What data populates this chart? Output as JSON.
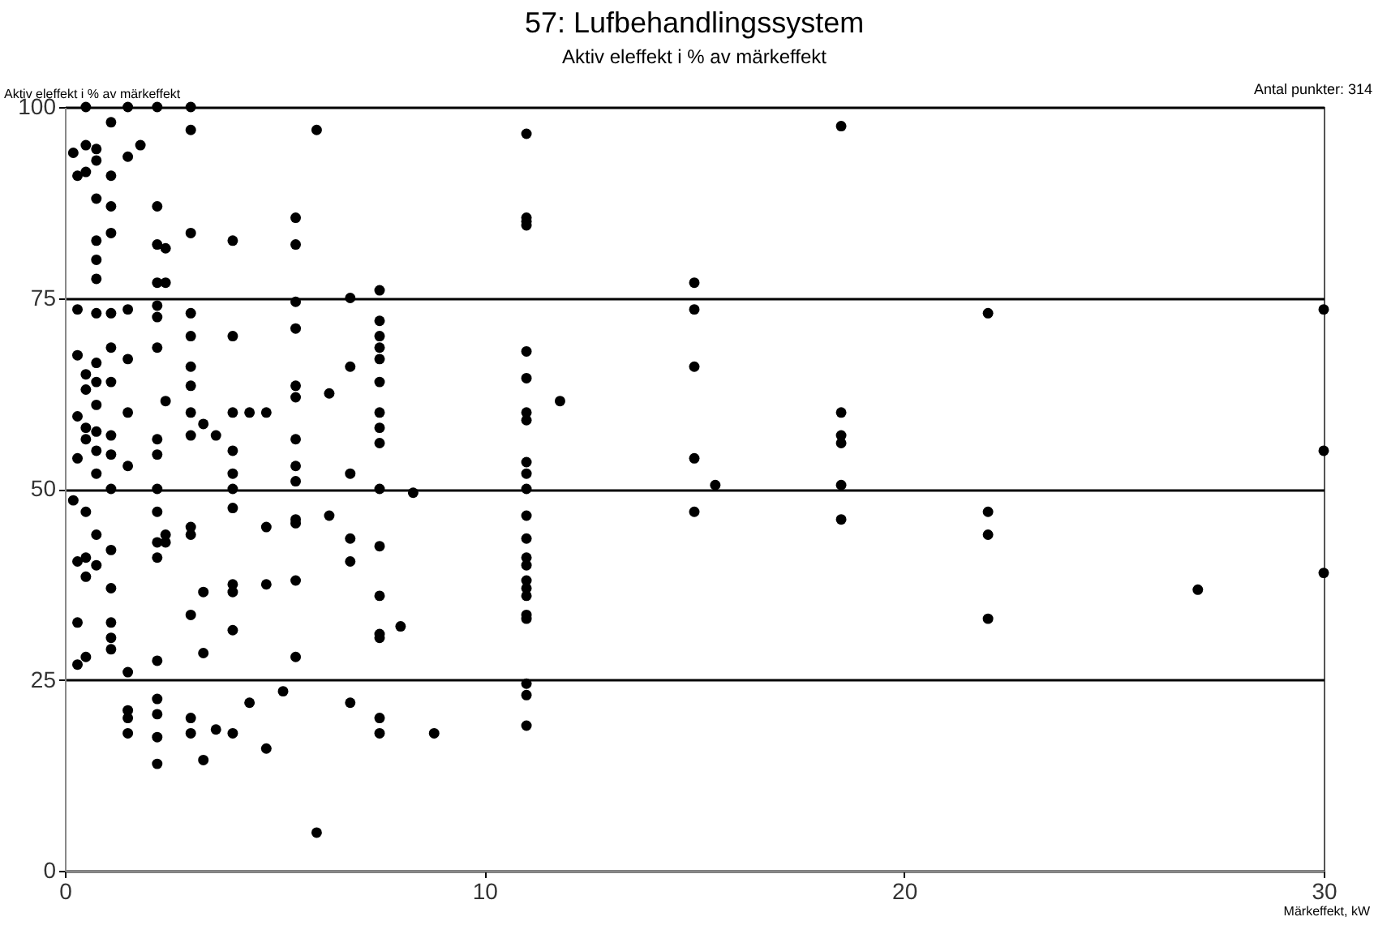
{
  "chart_data": {
    "type": "scatter",
    "title": "57: Lufbehandlingssystem",
    "subtitle": "Aktiv eleffekt i % av märkeffekt",
    "xlabel": "Märkeffekt, kW",
    "ylabel": "Aktiv eleffekt i % av märkeffekt",
    "annotations": [
      "Antal punkter: 314"
    ],
    "xlim": [
      0,
      30
    ],
    "xticks": [
      0,
      10,
      20,
      30
    ],
    "ylim": [
      0,
      100
    ],
    "yticks": [
      0,
      25,
      50,
      75,
      100
    ],
    "grid": "y",
    "marker": "circle",
    "series": [
      {
        "color": "#000000",
        "x": [
          0.2,
          0.2,
          0.3,
          0.3,
          0.3,
          0.3,
          0.3,
          0.3,
          0.3,
          0.3,
          0.5,
          0.5,
          0.5,
          0.5,
          0.5,
          0.5,
          0.5,
          0.5,
          0.5,
          0.5,
          0.5,
          0.75,
          0.75,
          0.75,
          0.75,
          0.75,
          0.75,
          0.75,
          0.75,
          0.75,
          0.75,
          0.75,
          0.75,
          0.75,
          0.75,
          0.75,
          1.1,
          1.1,
          1.1,
          1.1,
          1.1,
          1.1,
          1.1,
          1.1,
          1.1,
          1.1,
          1.1,
          1.1,
          1.1,
          1.1,
          1.1,
          1.5,
          1.5,
          1.5,
          1.5,
          1.5,
          1.5,
          1.5,
          1.5,
          1.5,
          1.5,
          1.8,
          2.2,
          2.2,
          2.2,
          2.2,
          2.2,
          2.2,
          2.2,
          2.2,
          2.2,
          2.2,
          2.2,
          2.2,
          2.2,
          2.2,
          2.2,
          2.2,
          2.2,
          2.2,
          2.4,
          2.4,
          2.4,
          2.4,
          2.4,
          3,
          3,
          3,
          3,
          3,
          3,
          3,
          3,
          3,
          3,
          3,
          3,
          3,
          3,
          3.3,
          3.3,
          3.3,
          3.3,
          3.6,
          3.6,
          4,
          4,
          4,
          4,
          4,
          4,
          4,
          4,
          4,
          4,
          4,
          4.4,
          4.4,
          4.8,
          4.8,
          4.8,
          4.8,
          5.2,
          5.5,
          5.5,
          5.5,
          5.5,
          5.5,
          5.5,
          5.5,
          5.5,
          5.5,
          5.5,
          5.5,
          5.5,
          5.5,
          6,
          6,
          6.3,
          6.3,
          6.8,
          6.8,
          6.8,
          6.8,
          6.8,
          6.8,
          7.5,
          7.5,
          7.5,
          7.5,
          7.5,
          7.5,
          7.5,
          7.5,
          7.5,
          7.5,
          7.5,
          7.5,
          7.5,
          7.5,
          7.5,
          7.5,
          8,
          8.3,
          8.8,
          11,
          11,
          11,
          11,
          11,
          11,
          11,
          11,
          11,
          11,
          11,
          11,
          11,
          11,
          11,
          11,
          11,
          11,
          11,
          11,
          11,
          11,
          11,
          11.8,
          15,
          15,
          15,
          15,
          15,
          15.5,
          18.5,
          18.5,
          18.5,
          18.5,
          18.5,
          18.5,
          22,
          22,
          22,
          22,
          27,
          30,
          30,
          30
        ],
        "values": [
          94,
          48.5,
          91,
          73.5,
          67.5,
          59.5,
          54,
          40.5,
          32.5,
          27,
          100,
          95,
          91.5,
          65,
          63,
          58,
          56.5,
          47,
          41,
          38.5,
          28,
          94.5,
          93,
          88,
          82.5,
          80,
          77.5,
          73,
          66.5,
          64,
          61,
          57.5,
          55,
          52,
          44,
          40,
          98,
          91,
          87,
          83.5,
          73,
          68.5,
          64,
          57,
          54.5,
          50,
          42,
          37,
          32.5,
          30.5,
          29,
          100,
          93.5,
          73.5,
          67,
          60,
          53,
          26,
          21,
          20,
          18,
          95,
          100,
          87,
          82,
          77,
          74,
          72.5,
          68.5,
          56.5,
          54.5,
          50,
          47,
          43,
          41,
          27.5,
          22.5,
          20.5,
          17.5,
          14,
          81.5,
          77,
          44,
          43,
          61.5,
          100,
          97,
          83.5,
          73,
          70,
          66,
          63.5,
          60,
          57,
          45,
          44,
          33.5,
          20,
          18,
          36.5,
          58.5,
          28.5,
          14.5,
          57,
          18.5,
          82.5,
          70,
          60,
          55,
          52,
          50,
          47.5,
          37.5,
          36.5,
          31.5,
          18,
          60,
          22,
          60,
          45,
          37.5,
          16,
          23.5,
          85.5,
          82,
          74.5,
          71,
          63.5,
          62,
          56.5,
          53,
          51,
          46,
          45.5,
          38,
          28,
          97,
          5,
          46.5,
          62.5,
          75,
          66,
          52,
          43.5,
          40.5,
          22,
          76,
          72,
          70,
          68.5,
          67,
          64,
          60,
          58,
          56,
          50,
          42.5,
          36,
          31,
          30.5,
          20,
          18,
          32,
          49.5,
          18,
          96.5,
          85.5,
          85,
          84.5,
          68,
          64.5,
          60,
          59,
          53.5,
          52,
          50,
          46.5,
          43.5,
          41,
          40,
          38,
          37,
          36,
          33.5,
          33,
          24.5,
          23,
          19,
          61.5,
          77,
          73.5,
          66,
          54,
          47,
          50.5,
          97.5,
          60,
          57,
          56,
          50.5,
          46,
          73,
          47,
          44,
          33,
          36.8,
          73.5,
          55,
          39
        ]
      }
    ]
  }
}
